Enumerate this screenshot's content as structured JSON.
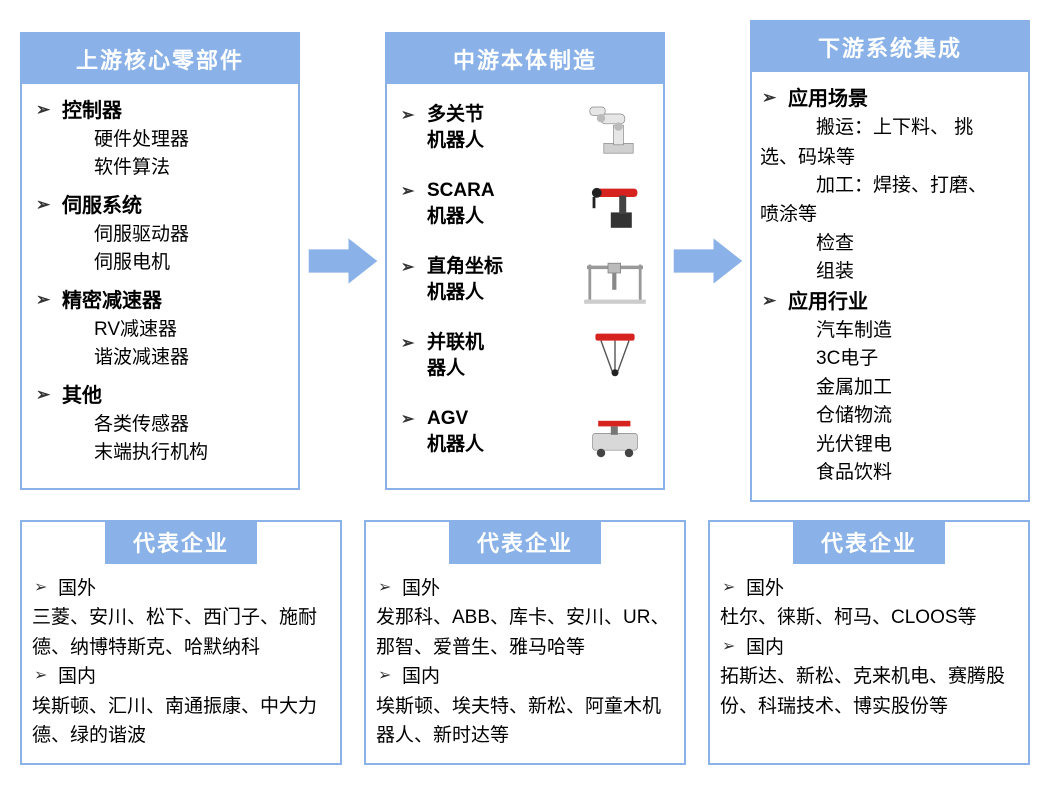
{
  "colors": {
    "header_bg": "#8ab2e8",
    "header_fg": "#ffffff",
    "border": "#8ab2e8",
    "arrow_fill": "#8ab2e8",
    "text": "#000000",
    "bg": "#ffffff"
  },
  "upstream": {
    "title": "上游核心零部件",
    "groups": [
      {
        "name": "控制器",
        "items": [
          "硬件处理器",
          "软件算法"
        ]
      },
      {
        "name": "伺服系统",
        "items": [
          "伺服驱动器",
          "伺服电机"
        ]
      },
      {
        "name": "精密减速器",
        "items": [
          "RV减速器",
          "谐波减速器"
        ]
      },
      {
        "name": "其他",
        "items": [
          "各类传感器",
          "末端执行机构"
        ]
      }
    ]
  },
  "midstream": {
    "title": "中游本体制造",
    "items": [
      {
        "label_l1": "多关节",
        "label_l2": "机器人",
        "icon": "articulated-robot-icon"
      },
      {
        "label_l1": "SCARA",
        "label_l2": "机器人",
        "icon": "scara-robot-icon"
      },
      {
        "label_l1": "直角坐标",
        "label_l2": "机器人",
        "icon": "cartesian-robot-icon"
      },
      {
        "label_l1": "并联机",
        "label_l2": "器人",
        "icon": "delta-robot-icon"
      },
      {
        "label_l1": "AGV",
        "label_l2": "机器人",
        "icon": "agv-robot-icon"
      }
    ]
  },
  "downstream": {
    "title": "下游系统集成",
    "sections": [
      {
        "name": "应用场景",
        "lines": [
          "搬运：上下料、 挑",
          "选、码垛等",
          "加工：焊接、打磨、",
          "喷涂等",
          "检查",
          "组装"
        ],
        "indent_flags": [
          true,
          false,
          true,
          false,
          true,
          true
        ]
      },
      {
        "name": "应用行业",
        "lines": [
          "汽车制造",
          "3C电子",
          "金属加工",
          "仓储物流",
          "光伏锂电",
          "食品饮料"
        ],
        "indent_flags": [
          true,
          true,
          true,
          true,
          true,
          true
        ]
      }
    ]
  },
  "rep": {
    "title": "代表企业",
    "cols": [
      {
        "foreign_label": "国外",
        "foreign_text": "三菱、安川、松下、西门子、施耐德、纳博特斯克、哈默纳科",
        "domestic_label": "国内",
        "domestic_text": "埃斯顿、汇川、南通振康、中大力德、绿的谐波"
      },
      {
        "foreign_label": "国外",
        "foreign_text": "发那科、ABB、库卡、安川、UR、那智、爱普生、雅马哈等",
        "domestic_label": "国内",
        "domestic_text": "埃斯顿、埃夫特、新松、阿童木机器人、新时达等"
      },
      {
        "foreign_label": "国外",
        "foreign_text": "杜尔、徕斯、柯马、CLOOS等",
        "domestic_label": "国内",
        "domestic_text": "拓斯达、新松、克来机电、赛腾股份、科瑞技术、博实股份等"
      }
    ]
  }
}
